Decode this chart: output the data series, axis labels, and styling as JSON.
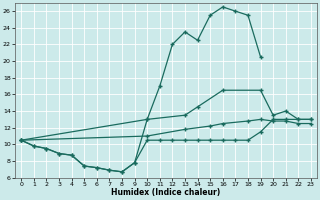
{
  "title": "",
  "xlabel": "Humidex (Indice chaleur)",
  "bg_color": "#cceaea",
  "line_color": "#1a6b5e",
  "grid_color": "#b0d8d8",
  "xlim": [
    -0.5,
    23.5
  ],
  "ylim": [
    6,
    27
  ],
  "yticks": [
    6,
    8,
    10,
    12,
    14,
    16,
    18,
    20,
    22,
    24,
    26
  ],
  "xticks": [
    0,
    1,
    2,
    3,
    4,
    5,
    6,
    7,
    8,
    9,
    10,
    11,
    12,
    13,
    14,
    15,
    16,
    17,
    18,
    19,
    20,
    21,
    22,
    23
  ],
  "line1_x": [
    0,
    1,
    2,
    3,
    4,
    5,
    6,
    7,
    8,
    9,
    10,
    11,
    12,
    13,
    14,
    15,
    16,
    17,
    18,
    19
  ],
  "line1_y": [
    10.5,
    9.8,
    9.5,
    8.9,
    8.7,
    7.4,
    7.2,
    6.9,
    6.7,
    7.8,
    13.0,
    17.0,
    22.0,
    23.5,
    22.5,
    25.5,
    26.5,
    26.0,
    25.5,
    20.5
  ],
  "line2_x": [
    0,
    10,
    13,
    14,
    16,
    19,
    20,
    21,
    22,
    23
  ],
  "line2_y": [
    10.5,
    13.0,
    13.5,
    14.5,
    16.5,
    16.5,
    13.5,
    14.0,
    13.0,
    13.0
  ],
  "line3_x": [
    0,
    10,
    13,
    15,
    16,
    18,
    19,
    20,
    21,
    22,
    23
  ],
  "line3_y": [
    10.5,
    11.0,
    11.8,
    12.2,
    12.5,
    12.8,
    13.0,
    12.8,
    12.8,
    12.5,
    12.5
  ],
  "line4_x": [
    0,
    1,
    2,
    3,
    4,
    5,
    6,
    7,
    8,
    9,
    10,
    11,
    12,
    13,
    14,
    15,
    16,
    17,
    18,
    19,
    20,
    21,
    22,
    23
  ],
  "line4_y": [
    10.5,
    9.8,
    9.5,
    8.9,
    8.7,
    7.4,
    7.2,
    6.9,
    6.7,
    7.8,
    10.5,
    10.5,
    10.5,
    10.5,
    10.5,
    10.5,
    10.5,
    10.5,
    10.5,
    11.5,
    13.0,
    13.0,
    13.0,
    13.0
  ]
}
